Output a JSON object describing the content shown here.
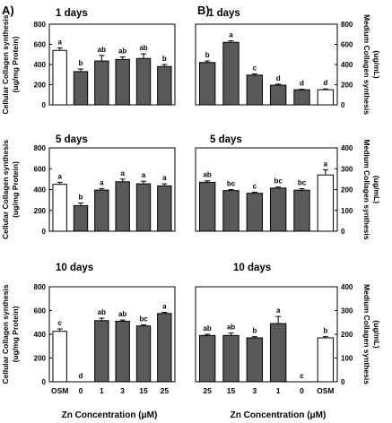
{
  "panel_labels": [
    "A)",
    "B)"
  ],
  "left_ylabel": [
    "Cellular Collagen synthesis",
    "(ug/mg Protein)"
  ],
  "right_ylabel": [
    "Medium Collagen synthesis",
    "(ug/mL)"
  ],
  "xlabel": "Zn Concentration (μM)",
  "colors": {
    "osm": "#ffffff",
    "zn": "#595959",
    "stroke": "#000000"
  },
  "chart_data": [
    {
      "id": "A1",
      "type": "bar",
      "title": "1 days",
      "categories": [
        "OSM",
        "0",
        "1",
        "3",
        "15",
        "25"
      ],
      "values": [
        540,
        330,
        435,
        450,
        460,
        380
      ],
      "errors": [
        25,
        25,
        55,
        25,
        45,
        20
      ],
      "letters": [
        "a",
        "b",
        "ab",
        "ab",
        "ab",
        "b"
      ],
      "ylim": [
        0,
        800
      ],
      "yticks": [
        0,
        200,
        400,
        600,
        800
      ],
      "ylabel": "Cellular Collagen synthesis (ug/mg Protein)",
      "axis_side": "left"
    },
    {
      "id": "B1",
      "type": "bar",
      "title": "1 days",
      "categories": [
        "25",
        "15",
        "3",
        "1",
        "0",
        "OSM"
      ],
      "values": [
        420,
        620,
        295,
        195,
        150,
        150
      ],
      "errors": [
        15,
        15,
        12,
        10,
        5,
        8
      ],
      "letters": [
        "b",
        "a",
        "c",
        "d",
        "d",
        "d"
      ],
      "ylim": [
        0,
        800
      ],
      "yticks": [
        0,
        200,
        400,
        600,
        800
      ],
      "ylabel": "Medium Collagen synthesis (ug/mL)",
      "axis_side": "right"
    },
    {
      "id": "A2",
      "type": "bar",
      "title": "5 days",
      "categories": [
        "OSM",
        "0",
        "1",
        "3",
        "15",
        "25"
      ],
      "values": [
        450,
        245,
        395,
        475,
        455,
        435
      ],
      "errors": [
        20,
        25,
        15,
        25,
        25,
        20
      ],
      "letters": [
        "a",
        "b",
        "a",
        "a",
        "a",
        "a"
      ],
      "ylim": [
        0,
        800
      ],
      "yticks": [
        0,
        200,
        400,
        600,
        800
      ],
      "ylabel": "Cellular Collagen synthesis (ug/mg Protein)",
      "axis_side": "left"
    },
    {
      "id": "B2",
      "type": "bar",
      "title": "5 days",
      "categories": [
        "25",
        "15",
        "3",
        "1",
        "0",
        "OSM"
      ],
      "values": [
        235,
        195,
        182,
        207,
        197,
        270
      ],
      "errors": [
        7,
        5,
        5,
        5,
        7,
        25
      ],
      "letters": [
        "ab",
        "bc",
        "c",
        "bc",
        "bc",
        "a"
      ],
      "ylim": [
        0,
        400
      ],
      "yticks": [
        0,
        100,
        200,
        300,
        400
      ],
      "ylabel": "Medium Collagen synthesis (ug/mL)",
      "axis_side": "right"
    },
    {
      "id": "A3",
      "type": "bar",
      "title": "10 days",
      "categories": [
        "OSM",
        "0",
        "1",
        "3",
        "15",
        "25"
      ],
      "values": [
        425,
        0,
        515,
        510,
        470,
        575
      ],
      "errors": [
        20,
        0,
        20,
        10,
        10,
        10
      ],
      "letters": [
        "c",
        "d",
        "ab",
        "ab",
        "bc",
        "a"
      ],
      "ylim": [
        0,
        800
      ],
      "yticks": [
        0,
        200,
        400,
        600,
        800
      ],
      "ylabel": "Cellular Collagen synthesis (ug/mg Protein)",
      "axis_side": "left"
    },
    {
      "id": "B3",
      "type": "bar",
      "title": "10 days",
      "categories": [
        "25",
        "15",
        "3",
        "1",
        "0",
        "OSM"
      ],
      "values": [
        195,
        195,
        185,
        245,
        0,
        185
      ],
      "errors": [
        5,
        10,
        5,
        30,
        0,
        5
      ],
      "letters": [
        "ab",
        "ab",
        "b",
        "a",
        "c",
        "b"
      ],
      "ylim": [
        0,
        400
      ],
      "yticks": [
        0,
        100,
        200,
        300,
        400
      ],
      "ylabel": "Medium Collagen synthesis (ug/mL)",
      "axis_side": "right"
    }
  ]
}
